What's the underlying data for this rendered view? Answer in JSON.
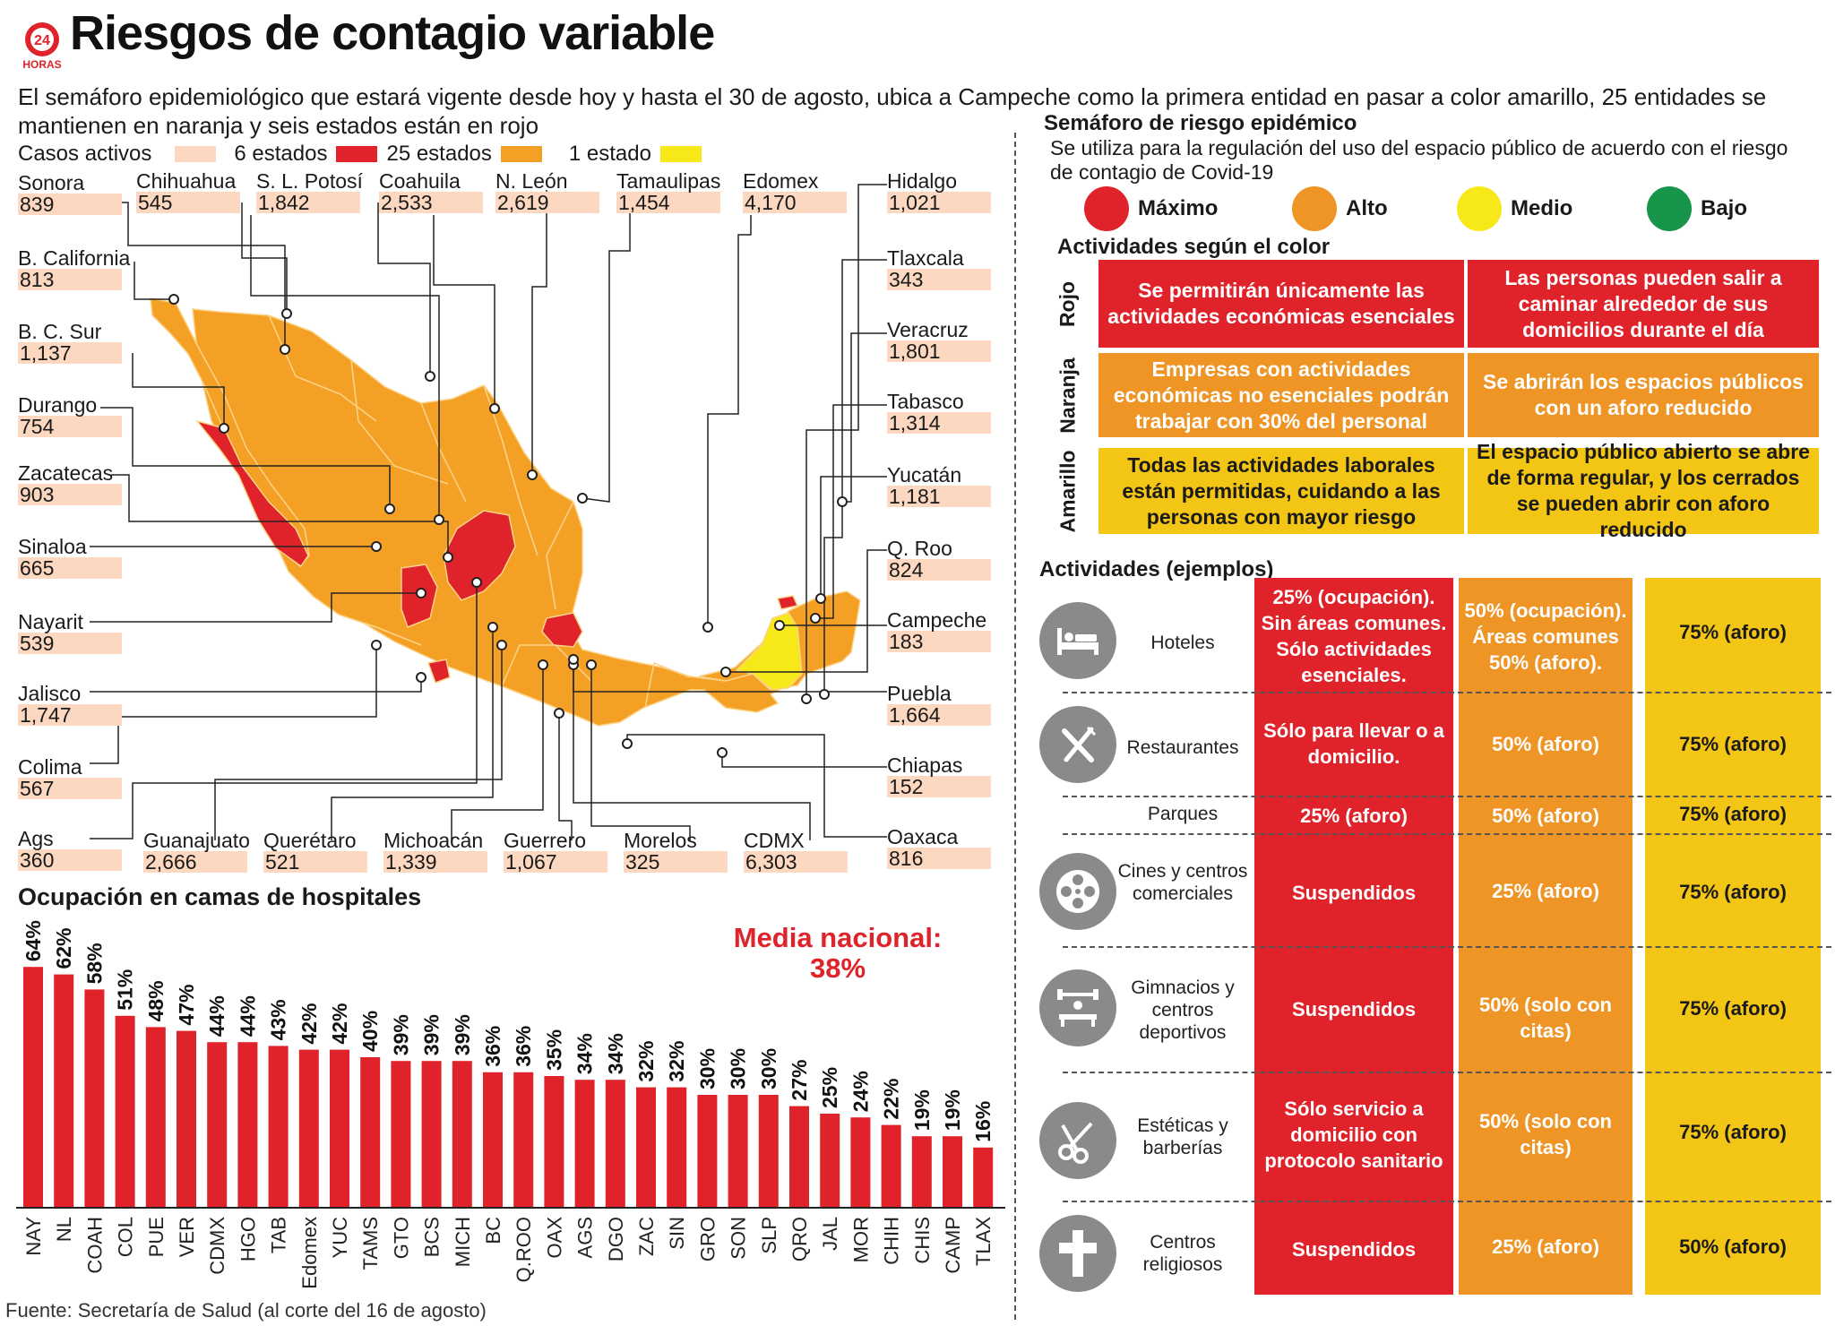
{
  "header": {
    "logo_text": "24 HORAS",
    "title": "Riesgos de contagio variable",
    "intro": "El semáforo epidemiológico que estará vigente desde hoy y hasta el 30 de agosto, ubica a Campeche como la primera entidad en pasar a color amarillo,  25 entidades se mantienen en naranja y seis estados están en rojo"
  },
  "legend": {
    "casos_label": "Casos activos",
    "red_label": "6 estados",
    "orange_label": "25 estados",
    "yellow_label": "1 estado"
  },
  "colors": {
    "red": "#e0222a",
    "orange": "#f4a024",
    "yellow": "#f7e81a",
    "green": "#17954b",
    "peach": "#fdd8c0",
    "amarillo_cell": "#f3c515",
    "naranja_cell": "#ee9526"
  },
  "states": [
    {
      "name": "Sonora",
      "value": "839"
    },
    {
      "name": "Chihuahua",
      "value": "545"
    },
    {
      "name": "S. L. Potosí",
      "value": "1,842"
    },
    {
      "name": "Coahuila",
      "value": "2,533"
    },
    {
      "name": "N. León",
      "value": "2,619"
    },
    {
      "name": "Tamaulipas",
      "value": "1,454"
    },
    {
      "name": "Edomex",
      "value": "4,170"
    },
    {
      "name": "Hidalgo",
      "value": "1,021"
    },
    {
      "name": "B. California",
      "value": "813"
    },
    {
      "name": "B. C. Sur",
      "value": "1,137"
    },
    {
      "name": "Durango",
      "value": "754"
    },
    {
      "name": "Zacatecas",
      "value": "903"
    },
    {
      "name": "Sinaloa",
      "value": "665"
    },
    {
      "name": "Nayarit",
      "value": "539"
    },
    {
      "name": "Jalisco",
      "value": "1,747"
    },
    {
      "name": "Colima",
      "value": "567"
    },
    {
      "name": "Ags",
      "value": "360"
    },
    {
      "name": "Tlaxcala",
      "value": "343"
    },
    {
      "name": "Veracruz",
      "value": "1,801"
    },
    {
      "name": "Tabasco",
      "value": "1,314"
    },
    {
      "name": "Yucatán",
      "value": "1,181"
    },
    {
      "name": "Q. Roo",
      "value": "824"
    },
    {
      "name": "Campeche",
      "value": "183"
    },
    {
      "name": "Puebla",
      "value": "1,664"
    },
    {
      "name": "Chiapas",
      "value": "152"
    },
    {
      "name": "Oaxaca",
      "value": "816"
    },
    {
      "name": "Guanajuato",
      "value": "2,666"
    },
    {
      "name": "Querétaro",
      "value": "521"
    },
    {
      "name": "Michoacán",
      "value": "1,339"
    },
    {
      "name": "Guerrero",
      "value": "1,067"
    },
    {
      "name": "Morelos",
      "value": "325"
    },
    {
      "name": "CDMX",
      "value": "6,303"
    }
  ],
  "chart_data": {
    "type": "bar",
    "title": "Ocupación en camas de hospitales",
    "categories": [
      "NAY",
      "NL",
      "COAH",
      "COL",
      "PUE",
      "VER",
      "CDMX",
      "HGO",
      "TAB",
      "Edomex",
      "YUC",
      "TAMS",
      "GTO",
      "BCS",
      "MICH",
      "BC",
      "Q.ROO",
      "OAX",
      "AGS",
      "DGO",
      "ZAC",
      "SIN",
      "GRO",
      "SON",
      "SLP",
      "QRO",
      "JAL",
      "MOR",
      "CHIH",
      "CHIS",
      "CAMP",
      "TLAX"
    ],
    "values": [
      64,
      62,
      58,
      51,
      48,
      47,
      44,
      44,
      43,
      42,
      42,
      40,
      39,
      39,
      39,
      36,
      36,
      35,
      34,
      34,
      32,
      32,
      30,
      30,
      30,
      27,
      25,
      24,
      22,
      19,
      19,
      16
    ],
    "value_labels": [
      "64%",
      "62%",
      "58%",
      "51%",
      "48%",
      "47%",
      "44%",
      "44%",
      "43%",
      "42%",
      "42%",
      "40%",
      "39%",
      "39%",
      "39%",
      "36%",
      "36%",
      "35%",
      "34%",
      "34%",
      "32%",
      "32%",
      "30%",
      "30%",
      "30%",
      "27%",
      "25%",
      "24%",
      "22%",
      "19%",
      "19%",
      "16%"
    ],
    "unit": "%",
    "annotation": "Media nacional:",
    "annotation_value": "38%",
    "bar_color": "#e0222a"
  },
  "source": "Fuente: Secretaría de Salud (al corte del 16 de agosto)",
  "semaforo": {
    "title": "Semáforo de riesgo epidémico",
    "desc": "Se utiliza para  la regulación del uso del espacio público de acuerdo con el riesgo de contagio de Covid-19",
    "levels": [
      "Máximo",
      "Alto",
      "Medio",
      "Bajo"
    ],
    "act_title": "Actividades según el color",
    "rows": [
      {
        "label": "Rojo",
        "left": "Se permitirán únicamente las actividades económicas esenciales",
        "right": "Las personas pueden salir a caminar alrededor de sus domicilios durante el día"
      },
      {
        "label": "Naranja",
        "left": "Empresas con actividades económicas no esenciales podrán trabajar con 30% del personal",
        "right": "Se abrirán los espacios públicos con un aforo reducido"
      },
      {
        "label": "Amarillo",
        "left": "Todas las actividades laborales están permitidas, cuidando a las personas con mayor riesgo",
        "right": "El espacio público abierto se abre de forma regular, y los cerrados se pueden abrir con aforo reducido"
      }
    ]
  },
  "examples": {
    "title": "Actividades (ejemplos)",
    "rows": [
      {
        "name": "Hoteles",
        "icon": "bed-icon",
        "rojo": "25% (ocupación). Sin áreas comunes. Sólo actividades esenciales.",
        "naranja": "50% (ocupación). Áreas comunes 50% (aforo).",
        "amarillo": "75% (aforo)"
      },
      {
        "name": "Restaurantes",
        "icon": "cutlery-icon",
        "rojo": "Sólo para llevar o a domicilio.",
        "naranja": "50% (aforo)",
        "amarillo": "75% (aforo)"
      },
      {
        "name": "Parques",
        "icon": "",
        "rojo": "25% (aforo)",
        "naranja": "50% (aforo)",
        "amarillo": "75% (aforo)"
      },
      {
        "name": "Cines y centros comerciales",
        "icon": "film-reel-icon",
        "rojo": "Suspendidos",
        "naranja": "25% (aforo)",
        "amarillo": "75% (aforo)"
      },
      {
        "name": "Gimnacios y centros deportivos",
        "icon": "weights-icon",
        "rojo": "Suspendidos",
        "naranja": "50% (solo con citas)",
        "amarillo": "75% (aforo)"
      },
      {
        "name": "Estéticas y barberías",
        "icon": "scissors-comb-icon",
        "rojo": "Sólo servicio a domicilio con protocolo sanitario",
        "naranja": "50% (solo con citas)",
        "amarillo": "75% (aforo)"
      },
      {
        "name": "Centros religiosos",
        "icon": "cross-icon",
        "rojo": "Suspendidos",
        "naranja": "25% (aforo)",
        "amarillo": "50% (aforo)"
      }
    ]
  }
}
